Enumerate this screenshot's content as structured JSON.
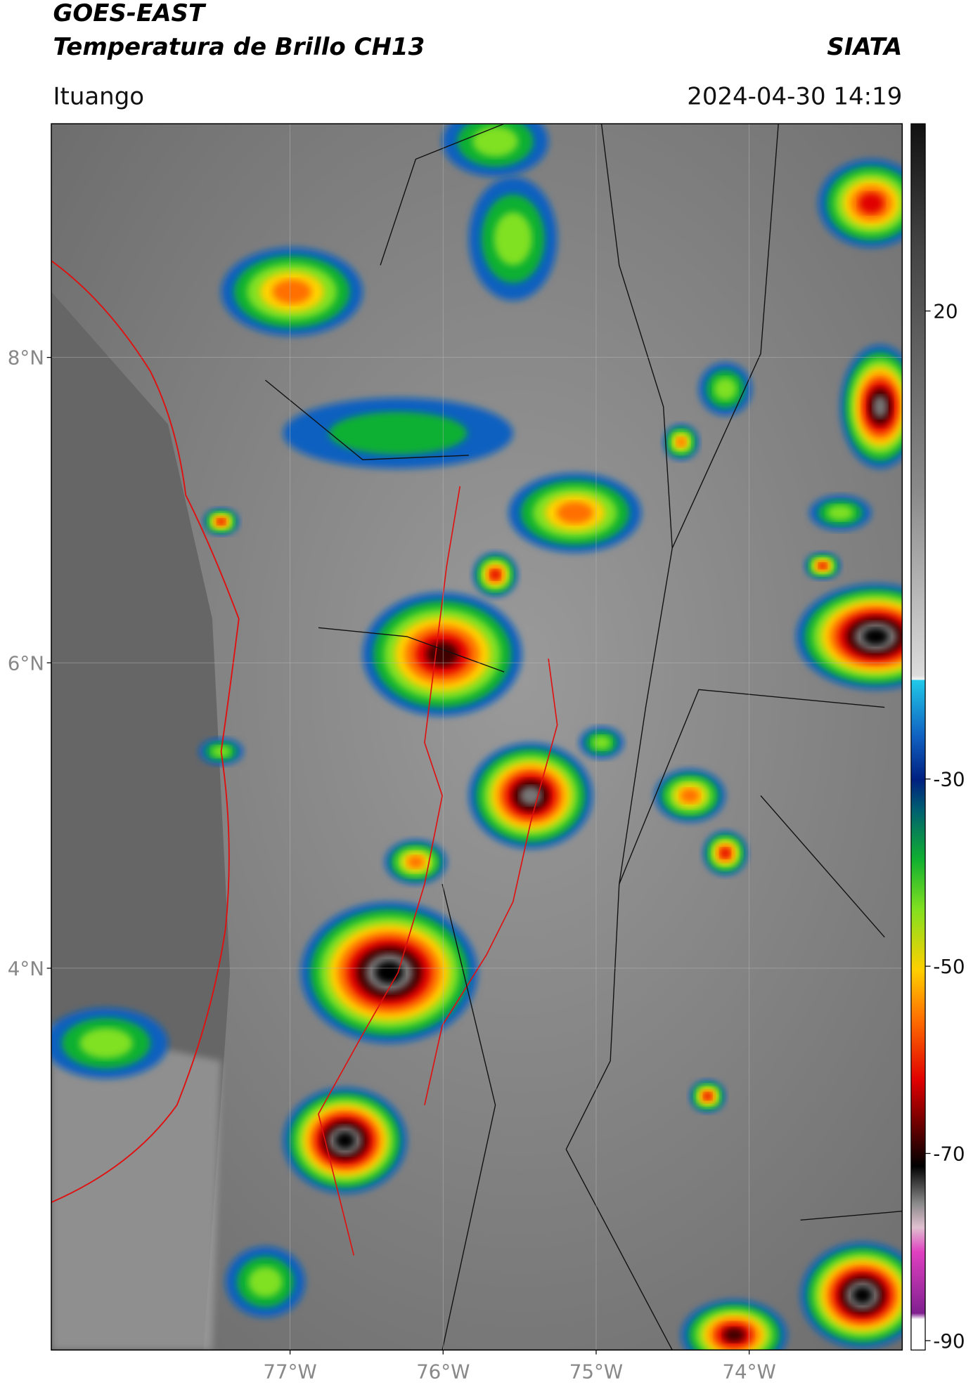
{
  "header": {
    "title_line1": "GOES-EAST",
    "title_line2": "Temperatura de Brillo CH13",
    "source": "SIATA",
    "region": "Ituango",
    "datetime": "2024-04-30 14:19"
  },
  "map": {
    "xlim": [
      -78.56,
      -73.0
    ],
    "ylim": [
      1.5,
      9.53
    ],
    "lat_ticks": [
      {
        "value": 8,
        "label": "8°N"
      },
      {
        "value": 6,
        "label": "6°N"
      },
      {
        "value": 4,
        "label": "4°N"
      }
    ],
    "lon_ticks": [
      {
        "value": -77,
        "label": "77°W"
      },
      {
        "value": -76,
        "label": "76°W"
      },
      {
        "value": -75,
        "label": "75°W"
      },
      {
        "value": -74,
        "label": "74°W"
      }
    ],
    "colorbar": {
      "lim": [
        -91,
        40
      ],
      "ticks": [
        20,
        -30,
        -50,
        -70,
        -90
      ]
    }
  }
}
